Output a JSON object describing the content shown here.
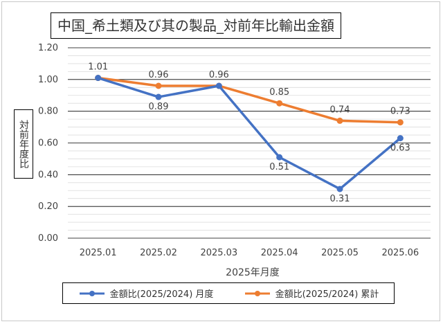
{
  "chart_data": {
    "type": "line",
    "title": "中国_希土類及び其の製品_対前年比輸出金額",
    "xlabel": "2025年月度",
    "ylabel": "対前年度比",
    "categories": [
      "2025.01",
      "2025.02",
      "2025.03",
      "2025.04",
      "2025.05",
      "2025.06"
    ],
    "ylim": [
      0,
      1.2
    ],
    "yticks": [
      "0.00",
      "0.20",
      "0.40",
      "0.60",
      "0.80",
      "1.00",
      "1.20"
    ],
    "grid": true,
    "legend_position": "bottom",
    "series": [
      {
        "name": "金額比(2025/2024) 月度",
        "color": "#4472C4",
        "values": [
          1.01,
          0.89,
          0.96,
          0.51,
          0.31,
          0.63
        ],
        "labels": [
          "",
          "0.89",
          "",
          "0.51",
          "0.31",
          "0.63"
        ]
      },
      {
        "name": "金額比(2025/2024) 累計",
        "color": "#ED7D31",
        "values": [
          1.01,
          0.96,
          0.96,
          0.85,
          0.74,
          0.73
        ],
        "labels": [
          "1.01",
          "0.96",
          "0.96",
          "0.85",
          "0.74",
          "0.73"
        ]
      }
    ]
  }
}
